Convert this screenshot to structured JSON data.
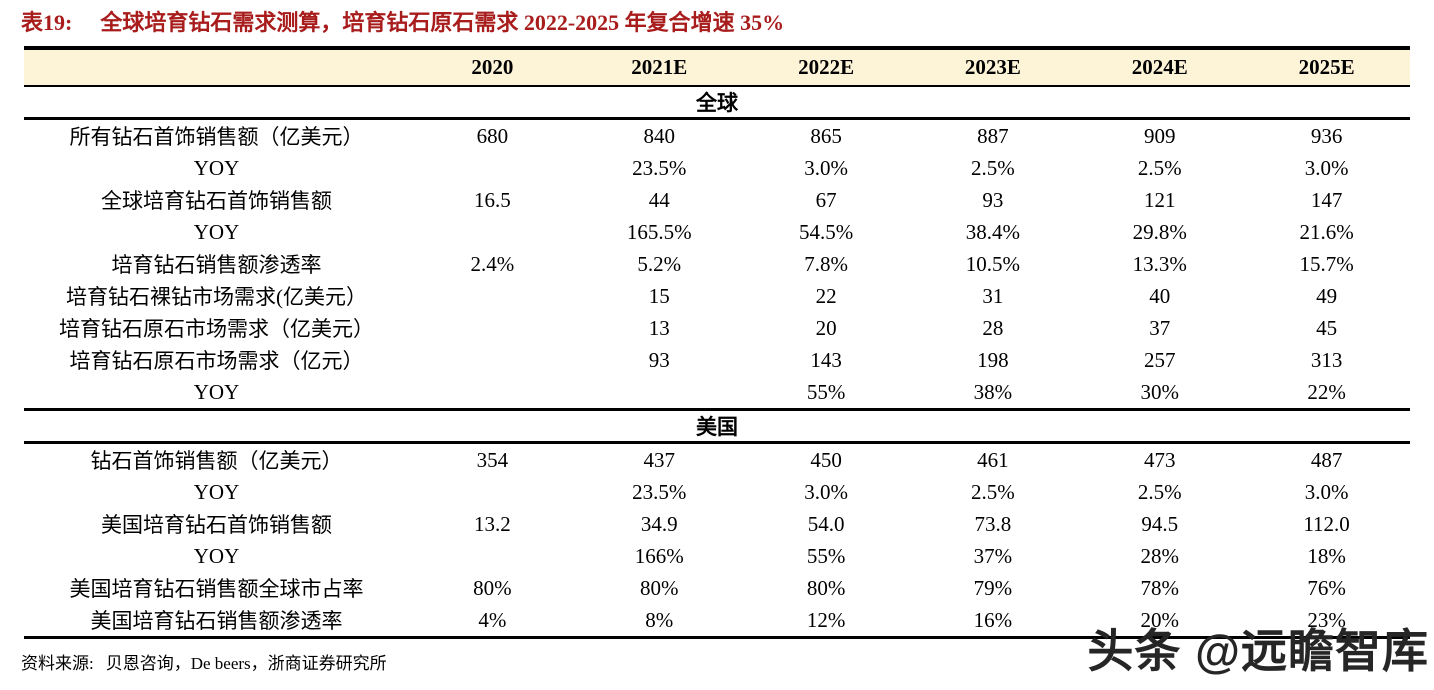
{
  "title": {
    "label": "表19:",
    "text": "全球培育钻石需求测算，培育钻石原石需求 2022-2025 年复合增速 35%"
  },
  "columns": [
    "",
    "2020",
    "2021E",
    "2022E",
    "2023E",
    "2024E",
    "2025E"
  ],
  "sections": [
    {
      "name": "全球",
      "rows": [
        {
          "label": "所有钻石首饰销售额（亿美元）",
          "values": [
            "680",
            "840",
            "865",
            "887",
            "909",
            "936"
          ]
        },
        {
          "label": "YOY",
          "values": [
            "",
            "23.5%",
            "3.0%",
            "2.5%",
            "2.5%",
            "3.0%"
          ]
        },
        {
          "label": "全球培育钻石首饰销售额",
          "values": [
            "16.5",
            "44",
            "67",
            "93",
            "121",
            "147"
          ]
        },
        {
          "label": "YOY",
          "values": [
            "",
            "165.5%",
            "54.5%",
            "38.4%",
            "29.8%",
            "21.6%"
          ]
        },
        {
          "label": "培育钻石销售额渗透率",
          "values": [
            "2.4%",
            "5.2%",
            "7.8%",
            "10.5%",
            "13.3%",
            "15.7%"
          ]
        },
        {
          "label": "培育钻石裸钻市场需求(亿美元）",
          "values": [
            "",
            "15",
            "22",
            "31",
            "40",
            "49"
          ]
        },
        {
          "label": "培育钻石原石市场需求（亿美元）",
          "values": [
            "",
            "13",
            "20",
            "28",
            "37",
            "45"
          ]
        },
        {
          "label": "培育钻石原石市场需求（亿元）",
          "values": [
            "",
            "93",
            "143",
            "198",
            "257",
            "313"
          ]
        },
        {
          "label": "YOY",
          "values": [
            "",
            "",
            "55%",
            "38%",
            "30%",
            "22%"
          ]
        }
      ]
    },
    {
      "name": "美国",
      "rows": [
        {
          "label": "钻石首饰销售额（亿美元）",
          "values": [
            "354",
            "437",
            "450",
            "461",
            "473",
            "487"
          ]
        },
        {
          "label": "YOY",
          "values": [
            "",
            "23.5%",
            "3.0%",
            "2.5%",
            "2.5%",
            "3.0%"
          ]
        },
        {
          "label": "美国培育钻石首饰销售额",
          "values": [
            "13.2",
            "34.9",
            "54.0",
            "73.8",
            "94.5",
            "112.0"
          ]
        },
        {
          "label": "YOY",
          "values": [
            "",
            "166%",
            "55%",
            "37%",
            "28%",
            "18%"
          ]
        },
        {
          "label": "美国培育钻石销售额全球市占率",
          "values": [
            "80%",
            "80%",
            "80%",
            "79%",
            "78%",
            "76%"
          ]
        },
        {
          "label": "美国培育钻石销售额渗透率",
          "values": [
            "4%",
            "8%",
            "12%",
            "16%",
            "20%",
            "23%"
          ]
        }
      ]
    }
  ],
  "footer": {
    "source_label": "资料来源:",
    "source_text": "贝恩咨询，De beers，浙商证券研究所"
  },
  "watermark": "头条 @远瞻智库",
  "colors": {
    "title_red": "#A81C1C",
    "header_bg": "#FDF4D8",
    "border_black": "#000000",
    "watermark_gray": "#262626"
  }
}
